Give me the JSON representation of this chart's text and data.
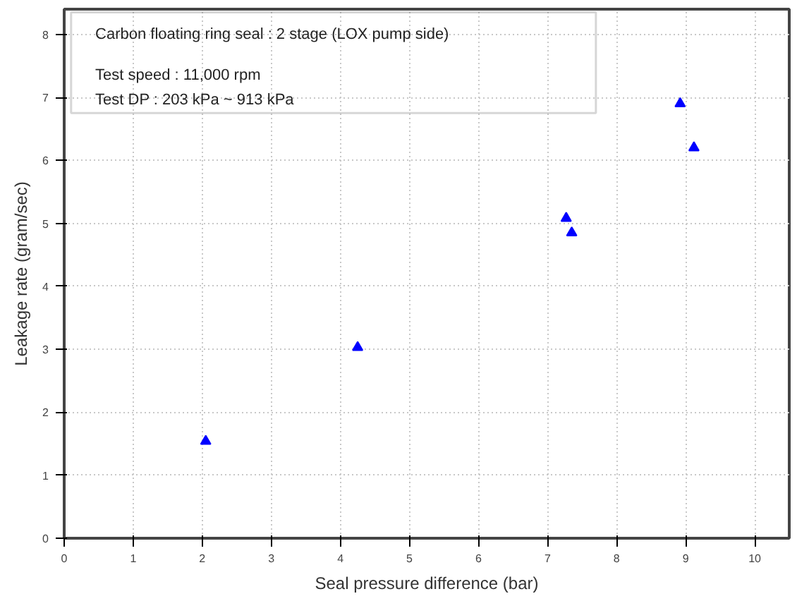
{
  "chart_data": {
    "type": "scatter",
    "xlabel": "Seal pressure difference (bar)",
    "ylabel": "Leakage rate (gram/sec)",
    "annotations": [
      "Carbon floating ring seal : 2 stage (LOX pump side)",
      "Test speed  : 11,000 rpm",
      "Test DP       :  203 kPa ~ 913 kPa"
    ],
    "x": [
      2.05,
      4.25,
      7.27,
      7.35,
      8.92,
      9.12
    ],
    "series": [
      {
        "color": "#0000ff",
        "values": [
          1.54,
          3.03,
          5.08,
          4.85,
          6.9,
          6.2
        ]
      }
    ],
    "xlim": [
      0,
      10.5
    ],
    "ylim": [
      0,
      8.4
    ],
    "xticks": [
      0,
      1,
      2,
      3,
      4,
      5,
      6,
      7,
      8,
      9,
      10
    ],
    "yticks": [
      0,
      1,
      2,
      3,
      4,
      5,
      6,
      7,
      8
    ],
    "grid": true,
    "marker": "triangle"
  }
}
